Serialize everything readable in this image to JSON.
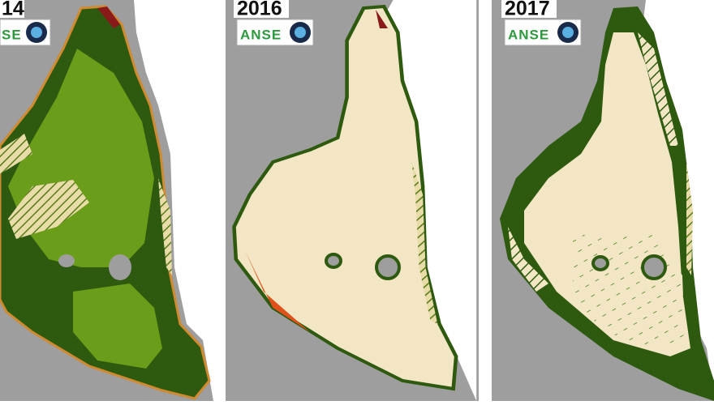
{
  "panels": [
    {
      "year": "14",
      "logo": "SE"
    },
    {
      "year": "2016",
      "logo": "ANSE"
    },
    {
      "year": "2017",
      "logo": "ANSE"
    }
  ]
}
